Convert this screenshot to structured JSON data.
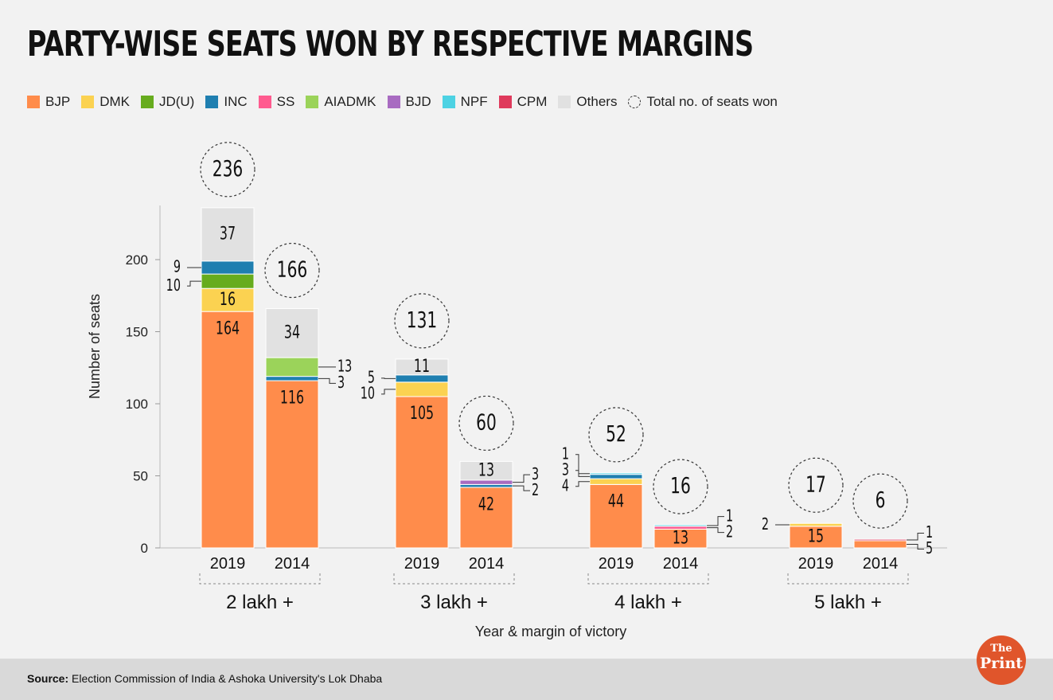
{
  "title": "PARTY-WISE SEATS WON BY RESPECTIVE MARGINS",
  "legend": [
    {
      "label": "BJP",
      "color": "#ff8c4b"
    },
    {
      "label": "DMK",
      "color": "#fbd251"
    },
    {
      "label": "JD(U)",
      "color": "#67ac1e"
    },
    {
      "label": "INC",
      "color": "#1f7fb0"
    },
    {
      "label": "SS",
      "color": "#ff5b8f"
    },
    {
      "label": "AIADMK",
      "color": "#9bd35a"
    },
    {
      "label": "BJD",
      "color": "#a86bc1"
    },
    {
      "label": "NPF",
      "color": "#4dd2e3"
    },
    {
      "label": "CPM",
      "color": "#df3a5c"
    },
    {
      "label": "Others",
      "color": "#e1e1e1"
    }
  ],
  "legend_total_label": "Total no. of seats won",
  "source": {
    "label": "Source:",
    "text": "Election Commission of India & Ashoka University's Lok Dhaba"
  },
  "logo": {
    "line1": "The",
    "line2": "Print"
  },
  "chart_data": {
    "type": "bar",
    "stacked": true,
    "title": "PARTY-WISE SEATS WON BY RESPECTIVE MARGINS",
    "ylabel": "Number of seats",
    "xlabel": "Year & margin of victory",
    "ylim": [
      0,
      236
    ],
    "yticks": [
      0,
      50,
      100,
      150,
      200
    ],
    "groups": [
      {
        "label": "2 lakh +",
        "bars": [
          {
            "year": "2019",
            "total": 236,
            "segments": [
              {
                "party": "BJP",
                "value": 164,
                "label": "164",
                "pos": "inside"
              },
              {
                "party": "DMK",
                "value": 16,
                "label": "16",
                "pos": "inside"
              },
              {
                "party": "JD(U)",
                "value": 10,
                "label": "10",
                "pos": "left"
              },
              {
                "party": "INC",
                "value": 9,
                "label": "9",
                "pos": "left"
              },
              {
                "party": "Others",
                "value": 37,
                "label": "37",
                "pos": "inside"
              }
            ]
          },
          {
            "year": "2014",
            "total": 166,
            "segments": [
              {
                "party": "BJP",
                "value": 116,
                "label": "116",
                "pos": "inside"
              },
              {
                "party": "INC",
                "value": 3,
                "label": "3",
                "pos": "right"
              },
              {
                "party": "AIADMK",
                "value": 13,
                "label": "13",
                "pos": "right"
              },
              {
                "party": "Others",
                "value": 34,
                "label": "34",
                "pos": "inside"
              }
            ]
          }
        ]
      },
      {
        "label": "3 lakh +",
        "bars": [
          {
            "year": "2019",
            "total": 131,
            "segments": [
              {
                "party": "BJP",
                "value": 105,
                "label": "105",
                "pos": "inside"
              },
              {
                "party": "DMK",
                "value": 10,
                "label": "10",
                "pos": "left"
              },
              {
                "party": "INC",
                "value": 5,
                "label": "5",
                "pos": "left"
              },
              {
                "party": "Others",
                "value": 11,
                "label": "11",
                "pos": "inside"
              }
            ]
          },
          {
            "year": "2014",
            "total": 60,
            "segments": [
              {
                "party": "BJP",
                "value": 42,
                "label": "42",
                "pos": "inside"
              },
              {
                "party": "INC",
                "value": 2,
                "label": "2",
                "pos": "right"
              },
              {
                "party": "BJD",
                "value": 3,
                "label": "3",
                "pos": "right"
              },
              {
                "party": "Others",
                "value": 13,
                "label": "13",
                "pos": "inside"
              }
            ]
          }
        ]
      },
      {
        "label": "4 lakh +",
        "bars": [
          {
            "year": "2019",
            "total": 52,
            "segments": [
              {
                "party": "BJP",
                "value": 44,
                "label": "44",
                "pos": "inside"
              },
              {
                "party": "DMK",
                "value": 4,
                "label": "4",
                "pos": "left"
              },
              {
                "party": "INC",
                "value": 3,
                "label": "3",
                "pos": "left"
              },
              {
                "party": "NPF",
                "value": 1,
                "label": "1",
                "pos": "left"
              }
            ]
          },
          {
            "year": "2014",
            "total": 16,
            "segments": [
              {
                "party": "BJP",
                "value": 13,
                "label": "13",
                "pos": "inside"
              },
              {
                "party": "SS",
                "value": 2,
                "label": "2",
                "pos": "right"
              },
              {
                "party": "NPF",
                "value": 1,
                "label": "1",
                "pos": "right"
              }
            ]
          }
        ]
      },
      {
        "label": "5 lakh +",
        "bars": [
          {
            "year": "2019",
            "total": 17,
            "segments": [
              {
                "party": "BJP",
                "value": 15,
                "label": "15",
                "pos": "inside"
              },
              {
                "party": "DMK",
                "value": 2,
                "label": "2",
                "pos": "left"
              }
            ]
          },
          {
            "year": "2014",
            "total": 6,
            "segments": [
              {
                "party": "BJP",
                "value": 5,
                "label": "5",
                "pos": "right"
              },
              {
                "party": "CPM",
                "value": 1,
                "label": "1",
                "pos": "right"
              }
            ]
          }
        ]
      }
    ]
  }
}
